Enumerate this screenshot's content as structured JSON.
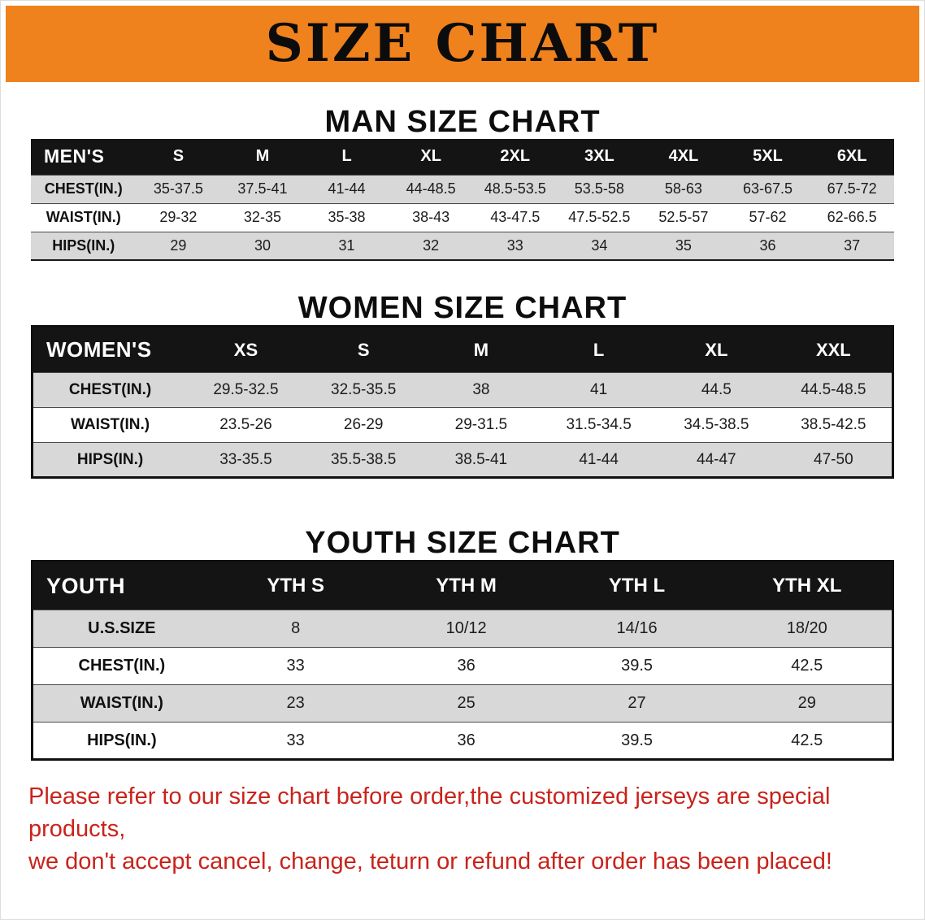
{
  "banner": {
    "title": "SIZE CHART"
  },
  "colors": {
    "banner_bg": "#f0821e",
    "table_header_bg": "#141414",
    "row_alt_bg": "#d8d8d8",
    "footer_text": "#c9231b"
  },
  "sections": {
    "men": {
      "heading": "MAN SIZE CHART",
      "header": [
        "MEN'S",
        "S",
        "M",
        "L",
        "XL",
        "2XL",
        "3XL",
        "4XL",
        "5XL",
        "6XL"
      ],
      "rows": [
        [
          "CHEST(IN.)",
          "35-37.5",
          "37.5-41",
          "41-44",
          "44-48.5",
          "48.5-53.5",
          "53.5-58",
          "58-63",
          "63-67.5",
          "67.5-72"
        ],
        [
          "WAIST(IN.)",
          "29-32",
          "32-35",
          "35-38",
          "38-43",
          "43-47.5",
          "47.5-52.5",
          "52.5-57",
          "57-62",
          "62-66.5"
        ],
        [
          "HIPS(IN.)",
          "29",
          "30",
          "31",
          "32",
          "33",
          "34",
          "35",
          "36",
          "37"
        ]
      ]
    },
    "women": {
      "heading": "WOMEN SIZE CHART",
      "header": [
        "WOMEN'S",
        "XS",
        "S",
        "M",
        "L",
        "XL",
        "XXL"
      ],
      "rows": [
        [
          "CHEST(IN.)",
          "29.5-32.5",
          "32.5-35.5",
          "38",
          "41",
          "44.5",
          "44.5-48.5"
        ],
        [
          "WAIST(IN.)",
          "23.5-26",
          "26-29",
          "29-31.5",
          "31.5-34.5",
          "34.5-38.5",
          "38.5-42.5"
        ],
        [
          "HIPS(IN.)",
          "33-35.5",
          "35.5-38.5",
          "38.5-41",
          "41-44",
          "44-47",
          "47-50"
        ]
      ]
    },
    "youth": {
      "heading": "YOUTH SIZE CHART",
      "header": [
        "YOUTH",
        "YTH S",
        "YTH M",
        "YTH L",
        "YTH XL"
      ],
      "rows": [
        [
          "U.S.SIZE",
          "8",
          "10/12",
          "14/16",
          "18/20"
        ],
        [
          "CHEST(IN.)",
          "33",
          "36",
          "39.5",
          "42.5"
        ],
        [
          "WAIST(IN.)",
          "23",
          "25",
          "27",
          "29"
        ],
        [
          "HIPS(IN.)",
          "33",
          "36",
          "39.5",
          "42.5"
        ]
      ]
    }
  },
  "footer": {
    "line1": "Please refer to our size chart before order,the customized jerseys are special products,",
    "line2": "we don't accept cancel, change, teturn or refund after order has been placed!"
  }
}
